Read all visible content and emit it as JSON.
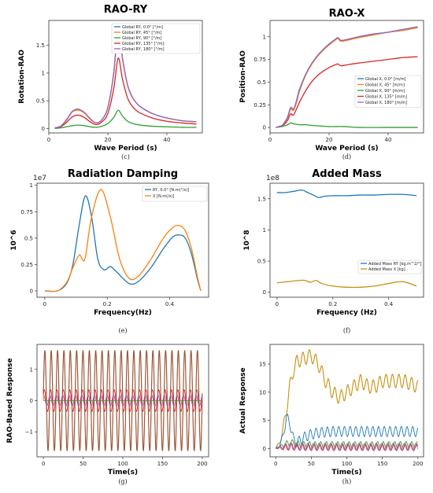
{
  "chart_data": [
    {
      "id": "c",
      "type": "line",
      "title": "RAO-RY",
      "xlabel": "Wave Period (s)",
      "ylabel": "Rotation-RAO",
      "caption": "(c)",
      "xlim": [
        0,
        52
      ],
      "ylim": [
        -0.08,
        1.95
      ],
      "xticks": [
        0,
        20,
        40
      ],
      "yticks": [
        0.0,
        0.5,
        1.0,
        1.5
      ],
      "legend_position": "top-right",
      "series": [
        {
          "name": "Global RY, 0.0° [°/m]",
          "color": "#1f77b4",
          "x": [
            2,
            4,
            6,
            8,
            10,
            12,
            14,
            16,
            18,
            20,
            22,
            23.5,
            25,
            27,
            30,
            35,
            40,
            45,
            50
          ],
          "values": [
            0.01,
            0.04,
            0.15,
            0.31,
            0.34,
            0.29,
            0.17,
            0.1,
            0.16,
            0.38,
            1.0,
            1.82,
            1.25,
            0.72,
            0.44,
            0.27,
            0.19,
            0.14,
            0.12
          ]
        },
        {
          "name": "Global RY, 45° [°/m]",
          "color": "#ff7f0e",
          "x": [
            2,
            4,
            6,
            8,
            10,
            12,
            14,
            16,
            18,
            20,
            22,
            23.5,
            25,
            27,
            30,
            35,
            40,
            45,
            50
          ],
          "values": [
            0.01,
            0.04,
            0.15,
            0.3,
            0.33,
            0.28,
            0.17,
            0.1,
            0.16,
            0.38,
            1.0,
            1.8,
            1.24,
            0.72,
            0.44,
            0.27,
            0.19,
            0.14,
            0.12
          ]
        },
        {
          "name": "Global RY, 90° [°/m]",
          "color": "#2ca02c",
          "x": [
            2,
            4,
            6,
            8,
            10,
            12,
            14,
            16,
            18,
            20,
            22,
            23.5,
            25,
            27,
            30,
            35,
            40,
            45,
            50
          ],
          "values": [
            0.0,
            0.01,
            0.03,
            0.05,
            0.06,
            0.05,
            0.03,
            0.02,
            0.04,
            0.09,
            0.2,
            0.33,
            0.22,
            0.12,
            0.07,
            0.04,
            0.03,
            0.02,
            0.02
          ]
        },
        {
          "name": "Global RY, 135° [°/m]",
          "color": "#d62728",
          "x": [
            2,
            4,
            6,
            8,
            10,
            12,
            14,
            16,
            18,
            20,
            22,
            23.5,
            25,
            27,
            30,
            35,
            40,
            45,
            50
          ],
          "values": [
            0.01,
            0.03,
            0.11,
            0.21,
            0.24,
            0.2,
            0.12,
            0.07,
            0.12,
            0.27,
            0.72,
            1.27,
            0.88,
            0.51,
            0.31,
            0.19,
            0.13,
            0.1,
            0.08
          ]
        },
        {
          "name": "Global RY, 180° [°/m]",
          "color": "#9467bd",
          "x": [
            2,
            4,
            6,
            8,
            10,
            12,
            14,
            16,
            18,
            20,
            22,
            23.5,
            25,
            27,
            30,
            35,
            40,
            45,
            50
          ],
          "values": [
            0.01,
            0.04,
            0.16,
            0.31,
            0.35,
            0.29,
            0.18,
            0.1,
            0.16,
            0.38,
            1.01,
            1.83,
            1.26,
            0.73,
            0.44,
            0.27,
            0.19,
            0.14,
            0.12
          ]
        }
      ]
    },
    {
      "id": "d",
      "type": "line",
      "title": "RAO-X",
      "xlabel": "Wave Period (s)",
      "ylabel": "Position-RAO",
      "caption": "(d)",
      "xlim": [
        0,
        52
      ],
      "ylim": [
        -0.06,
        1.18
      ],
      "xticks": [
        0,
        20,
        40
      ],
      "yticks": [
        0.0,
        0.25,
        0.5,
        0.75,
        1.0
      ],
      "legend_position": "lower-right",
      "series": [
        {
          "name": "Global X, 0.0° [m/m]",
          "color": "#1f77b4",
          "x": [
            2,
            4,
            5,
            6,
            7,
            8,
            9,
            10,
            12,
            14,
            16,
            18,
            20,
            22,
            23,
            24,
            26,
            30,
            35,
            40,
            45,
            50
          ],
          "values": [
            0.0,
            0.02,
            0.06,
            0.12,
            0.22,
            0.2,
            0.3,
            0.42,
            0.58,
            0.7,
            0.79,
            0.86,
            0.92,
            0.97,
            0.99,
            0.96,
            0.97,
            1.0,
            1.03,
            1.05,
            1.08,
            1.11
          ]
        },
        {
          "name": "Global X, 45° [m/m]",
          "color": "#ff7f0e",
          "x": [
            2,
            4,
            5,
            6,
            7,
            8,
            9,
            10,
            12,
            14,
            16,
            18,
            20,
            22,
            23,
            24,
            26,
            30,
            35,
            40,
            45,
            50
          ],
          "values": [
            0.0,
            0.02,
            0.05,
            0.11,
            0.2,
            0.19,
            0.28,
            0.4,
            0.57,
            0.69,
            0.78,
            0.85,
            0.91,
            0.96,
            0.98,
            0.95,
            0.96,
            0.99,
            1.02,
            1.05,
            1.07,
            1.1
          ]
        },
        {
          "name": "Global X, 90° [m/m]",
          "color": "#2ca02c",
          "x": [
            2,
            4,
            6,
            7,
            8,
            10,
            12,
            15,
            20,
            25,
            30,
            40,
            50
          ],
          "values": [
            0.0,
            0.01,
            0.03,
            0.05,
            0.04,
            0.03,
            0.03,
            0.02,
            0.01,
            0.01,
            0.0,
            0.0,
            0.0
          ]
        },
        {
          "name": "Global X, 135° [m/m]",
          "color": "#d62728",
          "x": [
            2,
            4,
            5,
            6,
            7,
            8,
            10,
            12,
            14,
            16,
            18,
            20,
            22,
            23,
            24,
            26,
            30,
            35,
            40,
            45,
            50
          ],
          "values": [
            0.0,
            0.02,
            0.04,
            0.08,
            0.15,
            0.14,
            0.28,
            0.4,
            0.5,
            0.57,
            0.62,
            0.66,
            0.69,
            0.7,
            0.68,
            0.69,
            0.71,
            0.73,
            0.75,
            0.77,
            0.78
          ]
        },
        {
          "name": "Global X, 180° [m/m]",
          "color": "#9467bd",
          "x": [
            2,
            4,
            5,
            6,
            7,
            8,
            9,
            10,
            12,
            14,
            16,
            18,
            20,
            22,
            23,
            24,
            26,
            30,
            35,
            40,
            45,
            50
          ],
          "values": [
            0.0,
            0.02,
            0.06,
            0.12,
            0.22,
            0.2,
            0.3,
            0.42,
            0.58,
            0.7,
            0.79,
            0.86,
            0.92,
            0.97,
            0.99,
            0.96,
            0.97,
            1.0,
            1.03,
            1.05,
            1.08,
            1.11
          ]
        }
      ]
    },
    {
      "id": "e",
      "type": "line",
      "title": "Radiation Damping",
      "xlabel": "Frequency(Hz)",
      "ylabel": "10^6",
      "offset_text": "1e7",
      "caption": "(e)",
      "xlim": [
        -0.025,
        0.525
      ],
      "ylim": [
        -0.06,
        1.02
      ],
      "xticks": [
        0.0,
        0.2,
        0.4
      ],
      "yticks": [
        0.0,
        0.25,
        0.5,
        0.75,
        1.0
      ],
      "legend_position": "top-right",
      "series": [
        {
          "name": "RY, 0.0° [N.m(°/s)]",
          "color": "#1f77b4",
          "x": [
            0.0,
            0.04,
            0.07,
            0.09,
            0.11,
            0.13,
            0.15,
            0.17,
            0.19,
            0.21,
            0.23,
            0.27,
            0.3,
            0.34,
            0.38,
            0.41,
            0.43,
            0.45,
            0.47,
            0.49,
            0.5
          ],
          "values": [
            0.0,
            0.0,
            0.07,
            0.25,
            0.62,
            0.9,
            0.7,
            0.3,
            0.2,
            0.23,
            0.18,
            0.07,
            0.09,
            0.22,
            0.4,
            0.51,
            0.53,
            0.5,
            0.35,
            0.1,
            0.0
          ]
        },
        {
          "name": "X [N.m(/s)]",
          "color": "#ff7f0e",
          "x": [
            0.0,
            0.04,
            0.07,
            0.09,
            0.11,
            0.12,
            0.13,
            0.15,
            0.18,
            0.21,
            0.24,
            0.27,
            0.3,
            0.34,
            0.38,
            0.41,
            0.43,
            0.45,
            0.47,
            0.49,
            0.5
          ],
          "values": [
            0.0,
            0.0,
            0.08,
            0.22,
            0.34,
            0.3,
            0.32,
            0.7,
            0.96,
            0.7,
            0.3,
            0.12,
            0.14,
            0.3,
            0.5,
            0.6,
            0.62,
            0.57,
            0.4,
            0.12,
            0.0
          ]
        }
      ]
    },
    {
      "id": "f",
      "type": "line",
      "title": "Added Mass",
      "xlabel": "Frequency (Hz)",
      "ylabel": "10^8",
      "offset_text": "1e8",
      "caption": "(f)",
      "xlim": [
        -0.025,
        0.525
      ],
      "ylim": [
        -0.08,
        1.75
      ],
      "xticks": [
        0.0,
        0.2,
        0.4
      ],
      "yticks": [
        0.0,
        0.5,
        1.0,
        1.5
      ],
      "legend_position": "lower-right",
      "series": [
        {
          "name": "Added Mass RY [kg.m^2/°]",
          "color": "#1f77b4",
          "x": [
            0.0,
            0.03,
            0.06,
            0.09,
            0.11,
            0.13,
            0.15,
            0.17,
            0.2,
            0.25,
            0.3,
            0.35,
            0.4,
            0.45,
            0.5
          ],
          "values": [
            1.6,
            1.6,
            1.62,
            1.64,
            1.6,
            1.56,
            1.52,
            1.54,
            1.55,
            1.55,
            1.56,
            1.56,
            1.57,
            1.57,
            1.55
          ]
        },
        {
          "name": "Added Mass X [kg]",
          "color": "#c89010",
          "x": [
            0.0,
            0.04,
            0.08,
            0.1,
            0.12,
            0.14,
            0.16,
            0.2,
            0.25,
            0.3,
            0.35,
            0.4,
            0.45,
            0.5
          ],
          "values": [
            0.15,
            0.17,
            0.19,
            0.19,
            0.16,
            0.19,
            0.14,
            0.1,
            0.08,
            0.08,
            0.1,
            0.14,
            0.17,
            0.1
          ]
        }
      ]
    },
    {
      "id": "g",
      "type": "line",
      "xlabel": "Time(s)",
      "ylabel": "RAO-Based Response",
      "caption": "(g)",
      "xlim": [
        -8,
        208
      ],
      "ylim": [
        -1.8,
        1.8
      ],
      "xticks": [
        0,
        50,
        100,
        150,
        200
      ],
      "yticks": [
        -1,
        0,
        1
      ],
      "oscillation": {
        "period_s": 8.0,
        "amplitude_outer": 1.62,
        "amplitude_inner": 0.35
      }
    },
    {
      "id": "h",
      "type": "line",
      "xlabel": "Time(s)",
      "ylabel": "Actual Response",
      "caption": "(h)",
      "xlim": [
        -8,
        208
      ],
      "ylim": [
        -1.5,
        18.5
      ],
      "xticks": [
        0,
        50,
        100,
        150,
        200
      ],
      "yticks": [
        0,
        5,
        10,
        15
      ],
      "envelopes": [
        {
          "color": "#c89010",
          "x": [
            0,
            5,
            10,
            15,
            20,
            25,
            30,
            40,
            50,
            60,
            70,
            80,
            90,
            100,
            110,
            120,
            130,
            140,
            150,
            160,
            170,
            180,
            190,
            200
          ],
          "values": [
            0,
            1,
            3,
            7,
            11,
            14,
            15.5,
            16,
            16.5,
            15,
            12,
            10,
            9,
            10,
            11,
            12,
            11,
            11,
            12,
            12,
            12,
            12,
            11.5,
            11
          ]
        },
        {
          "color": "#1f77b4",
          "x": [
            0,
            5,
            10,
            15,
            20,
            25,
            30,
            40,
            50,
            60,
            80,
            100,
            120,
            140,
            160,
            180,
            200
          ],
          "values": [
            0,
            0.5,
            2,
            5.5,
            4.5,
            1.5,
            1,
            2,
            2.5,
            2.8,
            3,
            3,
            3,
            3,
            3,
            3,
            3
          ]
        },
        {
          "color": "#2ca02c",
          "x": [
            0,
            10,
            20,
            40,
            200
          ],
          "values": [
            0,
            0.5,
            1,
            0.6,
            0.6
          ]
        },
        {
          "color": "#d62728",
          "x": [
            0,
            20,
            40,
            200
          ],
          "values": [
            0,
            0.3,
            0.2,
            0.2
          ]
        },
        {
          "color": "#9467bd",
          "x": [
            0,
            20,
            40,
            200
          ],
          "values": [
            0,
            0.4,
            0.3,
            0.3
          ]
        }
      ]
    }
  ]
}
